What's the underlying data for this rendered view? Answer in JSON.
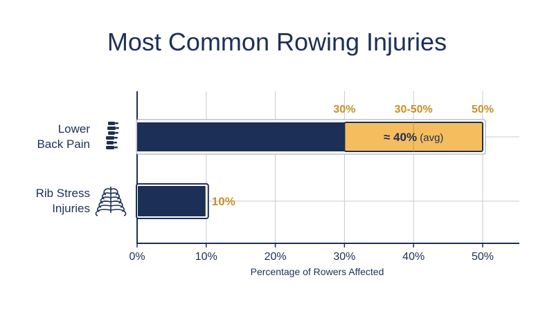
{
  "chart_data": {
    "type": "bar",
    "title": "Most Common Rowing Injuries",
    "xlabel": "Percentage of Rowers Affected",
    "ylabel": "",
    "xlim": [
      0,
      55
    ],
    "xticks": [
      0,
      10,
      20,
      30,
      40,
      50
    ],
    "tick_format": "%",
    "grid": true,
    "categories": [
      "Lower Back Pain",
      "Rib Stress Injuries"
    ],
    "category_lines": [
      [
        "Lower",
        "Back Pain"
      ],
      [
        "Rib Stress",
        "Injuries"
      ]
    ],
    "category_icons": [
      "spine-icon",
      "ribcage-icon"
    ],
    "bars": [
      {
        "category": "Lower Back Pain",
        "value": 30,
        "range": [
          30,
          50
        ],
        "range_label": "30-50%",
        "low_label": "30%",
        "high_label": "50%",
        "avg_prefix": "≈ ",
        "avg_value": "40%",
        "avg_suffix": " (avg)"
      },
      {
        "category": "Rib Stress Injuries",
        "value": 10,
        "label": "10%"
      }
    ],
    "colors": {
      "bar": "#1c2f57",
      "range_fill": "#f6bd5f",
      "accent_text": "#c8902b",
      "grid": "#c9c9c9"
    }
  }
}
